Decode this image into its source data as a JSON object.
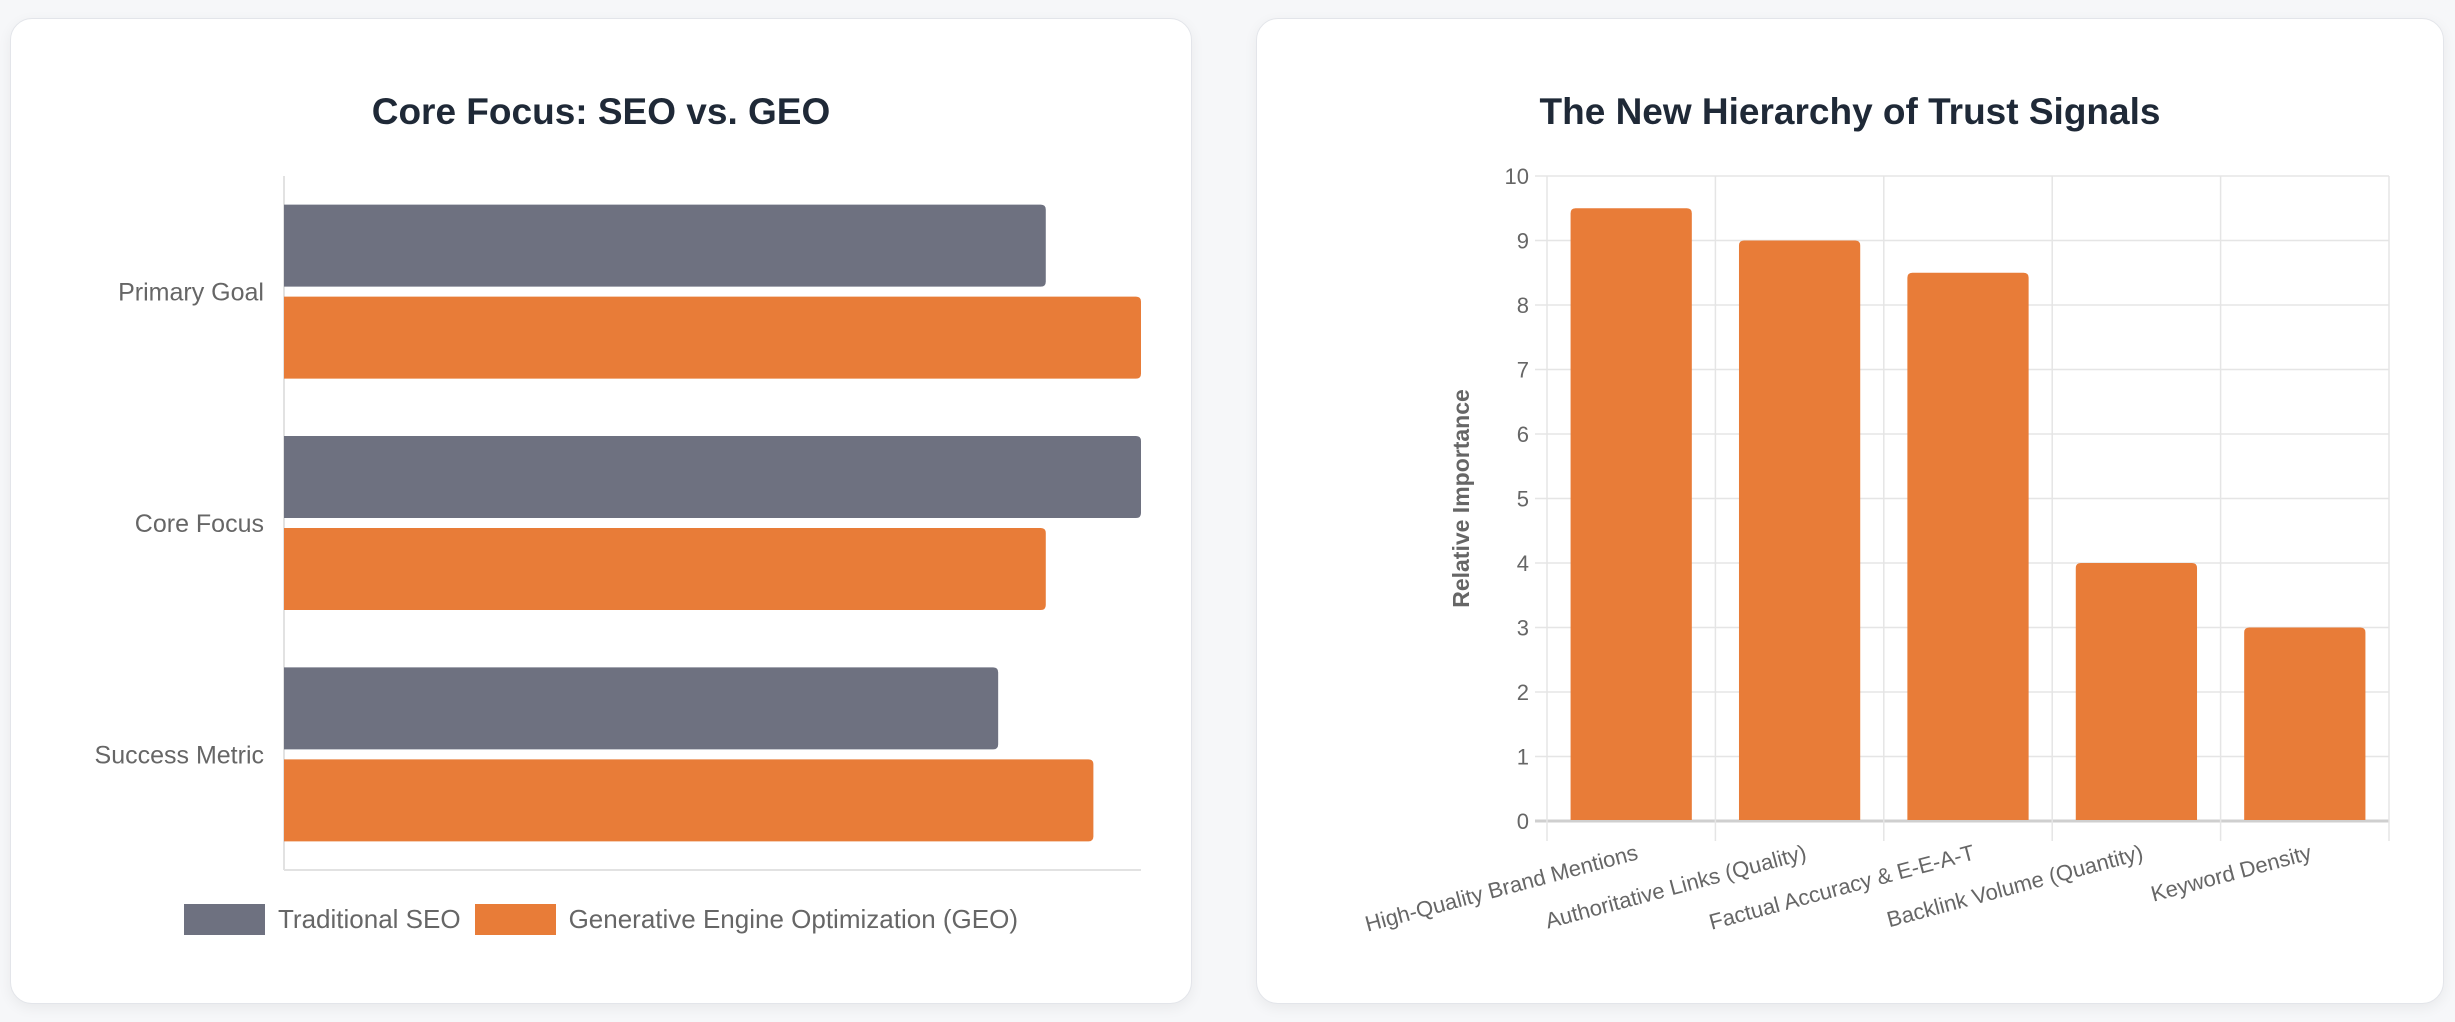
{
  "colors": {
    "seo": "#6e7180",
    "geo": "#e87c38",
    "grid": "#e5e5e5",
    "axis_text": "#666666"
  },
  "chart_data": [
    {
      "type": "bar",
      "orientation": "horizontal",
      "title": "Core Focus: SEO vs. GEO",
      "categories": [
        "Primary Goal",
        "Core Focus",
        "Success Metric"
      ],
      "series": [
        {
          "name": "Traditional SEO",
          "values": [
            8,
            9,
            7.5
          ]
        },
        {
          "name": "Generative Engine Optimization (GEO)",
          "values": [
            9,
            8,
            8.5
          ]
        }
      ],
      "xlim": [
        0,
        9
      ],
      "x_tick_labels_visible": false,
      "grid": false,
      "legend": "bottom"
    },
    {
      "type": "bar",
      "title": "The New Hierarchy of Trust Signals",
      "categories": [
        "High-Quality Brand Mentions",
        "Authoritative Links (Quality)",
        "Factual Accuracy & E-E-A-T",
        "Backlink Volume (Quantity)",
        "Keyword Density"
      ],
      "values": [
        9.5,
        9,
        8.5,
        4,
        3
      ],
      "xlabel": "",
      "ylabel": "Relative Importance",
      "ylim": [
        0,
        10
      ],
      "yticks": [
        "0",
        "1",
        "2",
        "3",
        "4",
        "5",
        "6",
        "7",
        "8",
        "9",
        "10"
      ],
      "grid": true,
      "legend": "none"
    }
  ]
}
